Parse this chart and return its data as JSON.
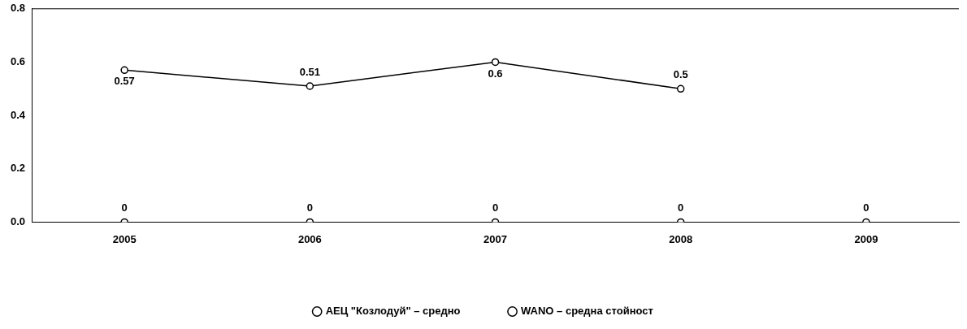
{
  "chart_data": {
    "type": "line",
    "categories": [
      "2005",
      "2006",
      "2007",
      "2008",
      "2009"
    ],
    "series": [
      {
        "name": "АЕЦ \"Козлодуй\" – средно",
        "type": "scatter",
        "color": "#000000",
        "values": [
          0,
          0,
          0,
          0,
          0
        ]
      },
      {
        "name": "WANO – средна стойност",
        "color": "#000000",
        "values": [
          0.57,
          0.51,
          0.6,
          0.5,
          null
        ]
      }
    ],
    "ylim": [
      0,
      0.8
    ],
    "yticks": [
      {
        "value": 0,
        "label": "0.0"
      },
      {
        "value": 0.2,
        "label": "0.2"
      },
      {
        "value": 0.4,
        "label": "0.4"
      },
      {
        "value": 0.6,
        "label": "0.6"
      },
      {
        "value": 0.8,
        "label": "0.8"
      }
    ],
    "grid": false,
    "legend": "bottom",
    "marker": "circle",
    "line_style": "solid",
    "data_labels": true
  }
}
